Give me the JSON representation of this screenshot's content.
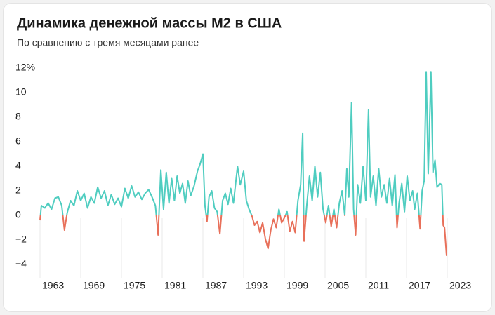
{
  "chart_data": {
    "type": "line",
    "title": "Динамика денежной массы М2 в США",
    "subtitle": "По сравнению с тремя месяцами ранее",
    "color": "#4fcdc0",
    "negative_color": "#e8705a",
    "x": [
      1963.0,
      1963.2,
      1963.7,
      1964.2,
      1964.7,
      1965.2,
      1965.7,
      1966.2,
      1966.6,
      1967.0,
      1967.5,
      1968.0,
      1968.5,
      1969.0,
      1969.5,
      1970.0,
      1970.5,
      1971.0,
      1971.5,
      1972.0,
      1972.5,
      1973.0,
      1973.5,
      1974.0,
      1974.5,
      1975.0,
      1975.5,
      1976.0,
      1976.5,
      1977.0,
      1977.5,
      1978.0,
      1978.5,
      1979.0,
      1979.5,
      1980.0,
      1980.4,
      1980.8,
      1981.2,
      1981.6,
      1982.0,
      1982.4,
      1982.8,
      1983.2,
      1983.6,
      1984.0,
      1984.4,
      1984.8,
      1985.2,
      1985.7,
      1986.2,
      1986.6,
      1987.0,
      1987.3,
      1987.6,
      1987.9,
      1988.3,
      1988.7,
      1989.1,
      1989.5,
      1989.9,
      1990.3,
      1990.7,
      1991.1,
      1991.5,
      1992.1,
      1992.5,
      1993.0,
      1993.4,
      1993.8,
      1994.2,
      1994.6,
      1995.0,
      1995.4,
      1995.8,
      1996.2,
      1996.6,
      1997.0,
      1997.4,
      1997.8,
      1998.2,
      1998.6,
      1999.0,
      1999.4,
      1999.8,
      2000.2,
      2000.6,
      2001.0,
      2001.4,
      2001.7,
      2001.9,
      2002.3,
      2002.7,
      2003.1,
      2003.5,
      2003.9,
      2004.3,
      2004.7,
      2005.1,
      2005.5,
      2005.9,
      2006.3,
      2006.7,
      2007.1,
      2007.5,
      2007.9,
      2008.2,
      2008.5,
      2008.9,
      2009.2,
      2009.5,
      2009.8,
      2010.2,
      2010.6,
      2011.0,
      2011.4,
      2011.7,
      2012.1,
      2012.5,
      2012.9,
      2013.3,
      2013.7,
      2014.1,
      2014.5,
      2014.9,
      2015.3,
      2015.6,
      2015.9,
      2016.3,
      2016.7,
      2017.1,
      2017.5,
      2017.9,
      2018.2,
      2018.6,
      2019.0,
      2019.3,
      2019.6,
      2019.9,
      2020.2,
      2020.6,
      2020.9,
      2021.2,
      2021.5,
      2021.9,
      2022.2,
      2022.4,
      2022.6,
      2022.9
    ],
    "values": [
      -0.4,
      0.8,
      0.6,
      1.0,
      0.5,
      1.4,
      1.5,
      0.8,
      -1.2,
      0.2,
      1.2,
      0.8,
      2.0,
      1.2,
      1.8,
      0.6,
      1.5,
      1.0,
      2.3,
      1.4,
      2.0,
      0.8,
      1.7,
      0.9,
      1.4,
      0.7,
      2.2,
      1.4,
      2.4,
      1.5,
      1.9,
      1.3,
      1.8,
      2.1,
      1.5,
      0.8,
      -1.6,
      3.7,
      0.5,
      3.5,
      1.0,
      3.0,
      1.2,
      3.2,
      1.8,
      2.6,
      1.0,
      2.8,
      1.6,
      2.4,
      3.6,
      4.2,
      5.0,
      0.8,
      -0.5,
      1.5,
      2.0,
      0.6,
      0.3,
      -1.5,
      1.2,
      1.8,
      0.9,
      2.2,
      1.0,
      4.0,
      2.5,
      3.6,
      1.2,
      0.5,
      0.0,
      -0.8,
      -0.5,
      -1.4,
      -0.6,
      -1.9,
      -2.7,
      -1.2,
      -0.3,
      -1.0,
      0.5,
      -0.6,
      -0.2,
      0.3,
      -1.3,
      -0.5,
      -1.4,
      1.2,
      2.5,
      6.7,
      -2.1,
      0.8,
      3.2,
      1.2,
      4.0,
      1.5,
      3.5,
      0.5,
      -0.6,
      0.8,
      -0.9,
      0.5,
      -1.0,
      1.0,
      2.0,
      0.0,
      3.8,
      1.5,
      9.2,
      0.5,
      -1.6,
      2.5,
      1.0,
      4.0,
      1.2,
      8.6,
      1.5,
      3.2,
      0.8,
      3.8,
      1.5,
      2.5,
      1.0,
      3.0,
      0.8,
      3.3,
      -1.0,
      1.0,
      2.6,
      0.3,
      3.2,
      1.2,
      2.0,
      0.5,
      1.8,
      -1.1,
      2.0,
      2.8,
      11.7,
      3.4,
      11.7,
      3.5,
      4.5,
      2.3,
      2.6,
      2.5,
      -0.8,
      -1.0,
      -3.3
    ],
    "xlim": [
      1963,
      2023
    ],
    "xticks": [
      1963,
      1969,
      1975,
      1981,
      1987,
      1993,
      1999,
      2005,
      2011,
      2017,
      2023
    ],
    "ylim": [
      -4.5,
      12.5
    ],
    "yticks": [
      {
        "value": -4,
        "label": "−4"
      },
      {
        "value": -2,
        "label": "−2"
      },
      0,
      2,
      4,
      6,
      8,
      10,
      {
        "value": 12,
        "label": "12%"
      }
    ],
    "grid": true
  }
}
